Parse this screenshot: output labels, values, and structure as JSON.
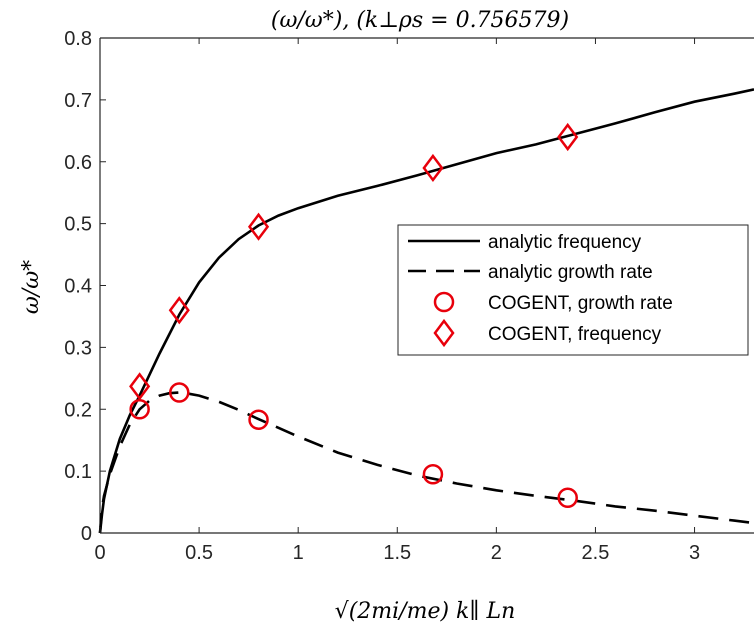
{
  "chart_data": {
    "type": "line",
    "title": "(ω/ω*), (k⊥ρs = 0.756579)",
    "xlabel": "√(2mi/me) k∥ Ln",
    "ylabel": "ω/ω*",
    "xlim": [
      0,
      3.3
    ],
    "ylim": [
      0,
      0.8
    ],
    "xticks": [
      "0",
      "0.5",
      "1",
      "1.5",
      "2",
      "2.5",
      "3"
    ],
    "xtick_values": [
      0,
      0.5,
      1,
      1.5,
      2,
      2.5,
      3
    ],
    "yticks": [
      "0",
      "0.1",
      "0.2",
      "0.3",
      "0.4",
      "0.5",
      "0.6",
      "0.7",
      "0.8"
    ],
    "ytick_values": [
      0,
      0.1,
      0.2,
      0.3,
      0.4,
      0.5,
      0.6,
      0.7,
      0.8
    ],
    "grid": false,
    "legend_position": "center-right",
    "series": [
      {
        "name": "analytic frequency",
        "style": "solid",
        "color": "#000000",
        "x": [
          0.0,
          0.01,
          0.02,
          0.05,
          0.1,
          0.15,
          0.2,
          0.3,
          0.4,
          0.5,
          0.6,
          0.7,
          0.8,
          0.9,
          1.0,
          1.2,
          1.4,
          1.6,
          1.8,
          2.0,
          2.2,
          2.4,
          2.6,
          2.8,
          3.0,
          3.2,
          3.3
        ],
        "y": [
          0.0,
          0.03,
          0.055,
          0.1,
          0.152,
          0.19,
          0.222,
          0.29,
          0.353,
          0.405,
          0.445,
          0.475,
          0.497,
          0.513,
          0.525,
          0.545,
          0.561,
          0.578,
          0.596,
          0.614,
          0.628,
          0.645,
          0.662,
          0.68,
          0.697,
          0.71,
          0.717
        ]
      },
      {
        "name": "analytic growth rate",
        "style": "dashed",
        "color": "#000000",
        "x": [
          0.0,
          0.01,
          0.02,
          0.05,
          0.1,
          0.15,
          0.2,
          0.25,
          0.3,
          0.35,
          0.4,
          0.45,
          0.5,
          0.6,
          0.7,
          0.8,
          1.0,
          1.2,
          1.4,
          1.6,
          1.8,
          2.0,
          2.2,
          2.4,
          2.6,
          2.8,
          3.0,
          3.2,
          3.3
        ],
        "y": [
          0.0,
          0.04,
          0.06,
          0.095,
          0.14,
          0.175,
          0.2,
          0.214,
          0.222,
          0.226,
          0.227,
          0.225,
          0.222,
          0.212,
          0.199,
          0.184,
          0.156,
          0.13,
          0.11,
          0.093,
          0.08,
          0.069,
          0.06,
          0.052,
          0.043,
          0.036,
          0.028,
          0.02,
          0.016
        ]
      },
      {
        "name": "COGENT, growth rate",
        "marker": "circle",
        "color": "#e8000b",
        "x": [
          0.2,
          0.4,
          0.8,
          1.68,
          2.36
        ],
        "y": [
          0.2,
          0.227,
          0.183,
          0.095,
          0.057
        ]
      },
      {
        "name": "COGENT, frequency",
        "marker": "diamond",
        "color": "#e8000b",
        "x": [
          0.2,
          0.4,
          0.8,
          1.68,
          2.36
        ],
        "y": [
          0.237,
          0.36,
          0.495,
          0.59,
          0.64
        ]
      }
    ]
  }
}
